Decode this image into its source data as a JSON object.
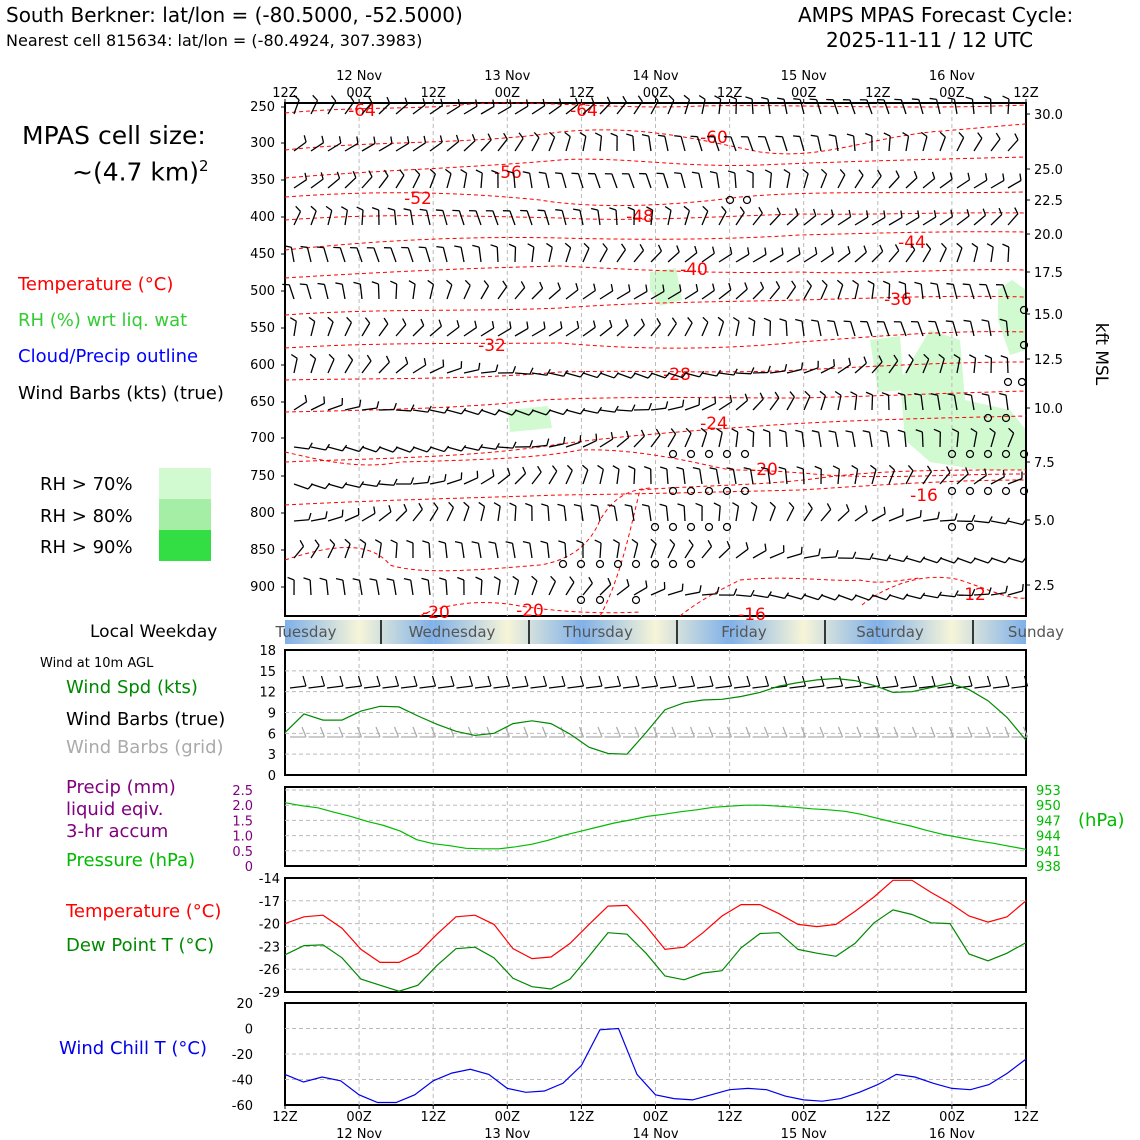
{
  "header": {
    "left_line1": "South Berkner: lat/lon = (-80.5000, -52.5000)",
    "left_line2": "Nearest cell 815634: lat/lon = (-80.4924, 307.3983)",
    "right_line1": "AMPS MPAS Forecast Cycle:",
    "right_line2": "2025-11-11 / 12 UTC"
  },
  "cell_size": {
    "line1": "MPAS cell size:",
    "line2_base": "~(4.7 km)",
    "line2_sup": "2"
  },
  "legend_top": {
    "temperature": "Temperature (°C)",
    "rh": "RH (%) wrt liq. wat",
    "cloud": "Cloud/Precip outline",
    "wind": "Wind Barbs (kts) (true)",
    "rh70": "RH > 70%",
    "rh80": "RH > 80%",
    "rh90": "RH > 90%"
  },
  "colors": {
    "temp": "#ff0000",
    "rh": "#33cc33",
    "cloud": "#0000ff",
    "precip": "#800080",
    "pressure": "#00bb00",
    "wind_spd": "#008800",
    "windchill": "#0000ee",
    "rh70": "#d1fad1",
    "rh80": "#a5eea5",
    "rh90": "#33dd44"
  },
  "time_axis": {
    "ticks": [
      "12Z",
      "00Z",
      "12Z",
      "00Z",
      "12Z",
      "00Z",
      "12Z",
      "00Z",
      "12Z",
      "00Z",
      "12Z"
    ],
    "dates": [
      "12 Nov",
      "13 Nov",
      "14 Nov",
      "15 Nov",
      "16 Nov"
    ]
  },
  "weekday": {
    "label": "Local Weekday",
    "days": [
      "Tuesday",
      "Wednesday",
      "Thursday",
      "Friday",
      "Saturday",
      "Sunday"
    ]
  },
  "panel2": {
    "title": "Wind at 10m AGL",
    "spd": "Wind Spd (kts)",
    "barbs_true": "Wind Barbs (true)",
    "barbs_grid": "Wind Barbs (grid)"
  },
  "panel3": {
    "precip1": "Precip (mm)",
    "precip2": "liquid eqiv.",
    "precip3": "3-hr accum",
    "pressure": "Pressure (hPa)",
    "unit": "(hPa)"
  },
  "panel4": {
    "temp": "Temperature (°C)",
    "dew": "Dew Point T (°C)"
  },
  "panel5": {
    "chill": "Wind Chill T (°C)"
  },
  "chart_data": [
    {
      "type": "line",
      "panel": "cross-section",
      "yticks_left": [
        "250",
        "300",
        "350",
        "400",
        "450",
        "500",
        "550",
        "600",
        "650",
        "700",
        "750",
        "800",
        "850",
        "900"
      ],
      "yticks_right": [
        "30.0",
        "25.0",
        "22.5",
        "20.0",
        "17.5",
        "15.0",
        "12.5",
        "10.0",
        "7.5",
        "5.0",
        "2.5"
      ],
      "ylabel_right": "kft MSL",
      "temp_labels": [
        "-64",
        "-64",
        "-60",
        "-56",
        "-52",
        "-48",
        "-44",
        "-40",
        "-36",
        "-32",
        "-28",
        "-24",
        "-20",
        "-16",
        "-12",
        "-20",
        "-20",
        "-16"
      ]
    },
    {
      "type": "line",
      "panel": "wind-10m",
      "yticks": [
        "0",
        "3",
        "6",
        "9",
        "12",
        "15",
        "18"
      ],
      "ylim": [
        0,
        18
      ],
      "series": [
        {
          "name": "Wind Spd (kts)",
          "values": [
            6.1,
            8.8,
            7.9,
            7.9,
            9.2,
            9.9,
            9.8,
            8.5,
            7.3,
            6.3,
            5.7,
            6.0,
            7.4,
            7.8,
            7.4,
            5.9,
            4.0,
            3.1,
            3.0,
            6.1,
            9.4,
            10.4,
            10.8,
            10.9,
            11.3,
            11.9,
            12.8,
            13.3,
            13.7,
            13.9,
            13.6,
            12.9,
            11.9,
            12.0,
            12.6,
            13.2,
            12.3,
            10.7,
            8.3,
            5.0
          ]
        }
      ]
    },
    {
      "type": "line",
      "panel": "precip-pressure",
      "yticks_left": [
        "0",
        "0.5",
        "1.0",
        "1.5",
        "2.0",
        "2.5"
      ],
      "yticks_right": [
        "938",
        "941",
        "944",
        "947",
        "950",
        "953"
      ],
      "series": [
        {
          "name": "Pressure (hPa)",
          "values": [
            950.5,
            949.9,
            949.5,
            948.6,
            947.8,
            946.8,
            946.0,
            944.9,
            943.2,
            942.4,
            942.0,
            941.5,
            941.4,
            941.4,
            941.8,
            942.3,
            943.1,
            944.1,
            944.9,
            945.7,
            946.5,
            947.1,
            947.8,
            948.2,
            948.7,
            949.1,
            949.6,
            949.8,
            950.0,
            950.0,
            949.8,
            949.6,
            949.3,
            949.1,
            948.8,
            948.2,
            947.4,
            946.6,
            945.9,
            945.0,
            944.2,
            943.6,
            943.0,
            942.5,
            941.9,
            941.3
          ]
        }
      ]
    },
    {
      "type": "line",
      "panel": "temperature",
      "yticks": [
        "-29",
        "-26",
        "-23",
        "-20",
        "-17",
        "-14"
      ],
      "ylim": [
        -29,
        -14
      ],
      "series": [
        {
          "name": "Temperature (°C)",
          "values": [
            -20.0,
            -19.1,
            -18.9,
            -20.6,
            -23.4,
            -25.1,
            -25.1,
            -23.9,
            -21.4,
            -19.1,
            -18.9,
            -20.1,
            -23.3,
            -24.6,
            -24.4,
            -22.6,
            -20.1,
            -17.7,
            -17.6,
            -20.3,
            -23.4,
            -23.1,
            -21.2,
            -19.0,
            -17.5,
            -17.5,
            -18.7,
            -20.1,
            -20.4,
            -20.1,
            -18.4,
            -16.5,
            -14.3,
            -14.3,
            -15.9,
            -17.3,
            -19.0,
            -19.8,
            -19.1,
            -17.0
          ]
        },
        {
          "name": "Dew Point T (°C)",
          "values": [
            -24.1,
            -22.9,
            -22.8,
            -24.5,
            -27.3,
            -28.1,
            -28.9,
            -28.1,
            -25.5,
            -23.3,
            -23.1,
            -24.5,
            -27.2,
            -28.3,
            -28.6,
            -27.3,
            -24.3,
            -21.2,
            -21.4,
            -23.9,
            -26.9,
            -27.4,
            -26.5,
            -26.2,
            -23.2,
            -21.3,
            -21.2,
            -23.4,
            -23.9,
            -24.3,
            -22.6,
            -19.9,
            -18.2,
            -18.8,
            -19.9,
            -20.0,
            -24.0,
            -24.9,
            -23.9,
            -22.5
          ]
        }
      ]
    },
    {
      "type": "line",
      "panel": "wind-chill",
      "yticks": [
        "-60",
        "-40",
        "-20",
        "0",
        "20"
      ],
      "ylim": [
        -60,
        20
      ],
      "series": [
        {
          "name": "Wind Chill T (°C)",
          "values": [
            -36,
            -42,
            -38,
            -41,
            -52,
            -58,
            -58,
            -52,
            -41,
            -35,
            -32,
            -36,
            -47,
            -50,
            -49,
            -43,
            -29,
            -1,
            0,
            -36,
            -52,
            -55,
            -56,
            -52,
            -48,
            -47,
            -48,
            -53,
            -56,
            -57,
            -55,
            -50,
            -44,
            -36,
            -38,
            -43,
            -47,
            -48,
            -44,
            -35,
            -24
          ]
        }
      ]
    }
  ]
}
